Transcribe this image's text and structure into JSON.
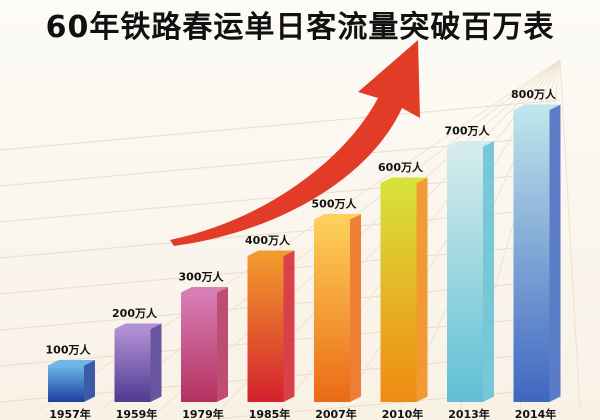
{
  "chart_data": {
    "type": "bar",
    "title": "60年铁路春运单日客流量突破百万表",
    "categories": [
      "1957年",
      "1959年",
      "1979年",
      "1985年",
      "2007年",
      "2010年",
      "2013年",
      "2014年"
    ],
    "values": [
      100,
      200,
      300,
      400,
      500,
      600,
      700,
      800
    ],
    "data_labels": [
      "100万人",
      "200万人",
      "300万人",
      "400万人",
      "500万人",
      "600万人",
      "700万人",
      "800万人"
    ],
    "ylim": [
      0,
      800
    ],
    "grid": false,
    "legend": "none",
    "bar_colors": [
      [
        "#1b3f9c",
        "#6cb6ea"
      ],
      [
        "#4f3a93",
        "#b191d3"
      ],
      [
        "#b3305e",
        "#d87fb6"
      ],
      [
        "#d3212e",
        "#f39a2d"
      ],
      [
        "#eb6a16",
        "#fdd05a"
      ],
      [
        "#f08a12",
        "#d8e23a"
      ],
      [
        "#5fbfd4",
        "#d6ecec"
      ],
      [
        "#3f66c0",
        "#bfe5eb"
      ]
    ],
    "arrow_color": "#e0321e"
  }
}
